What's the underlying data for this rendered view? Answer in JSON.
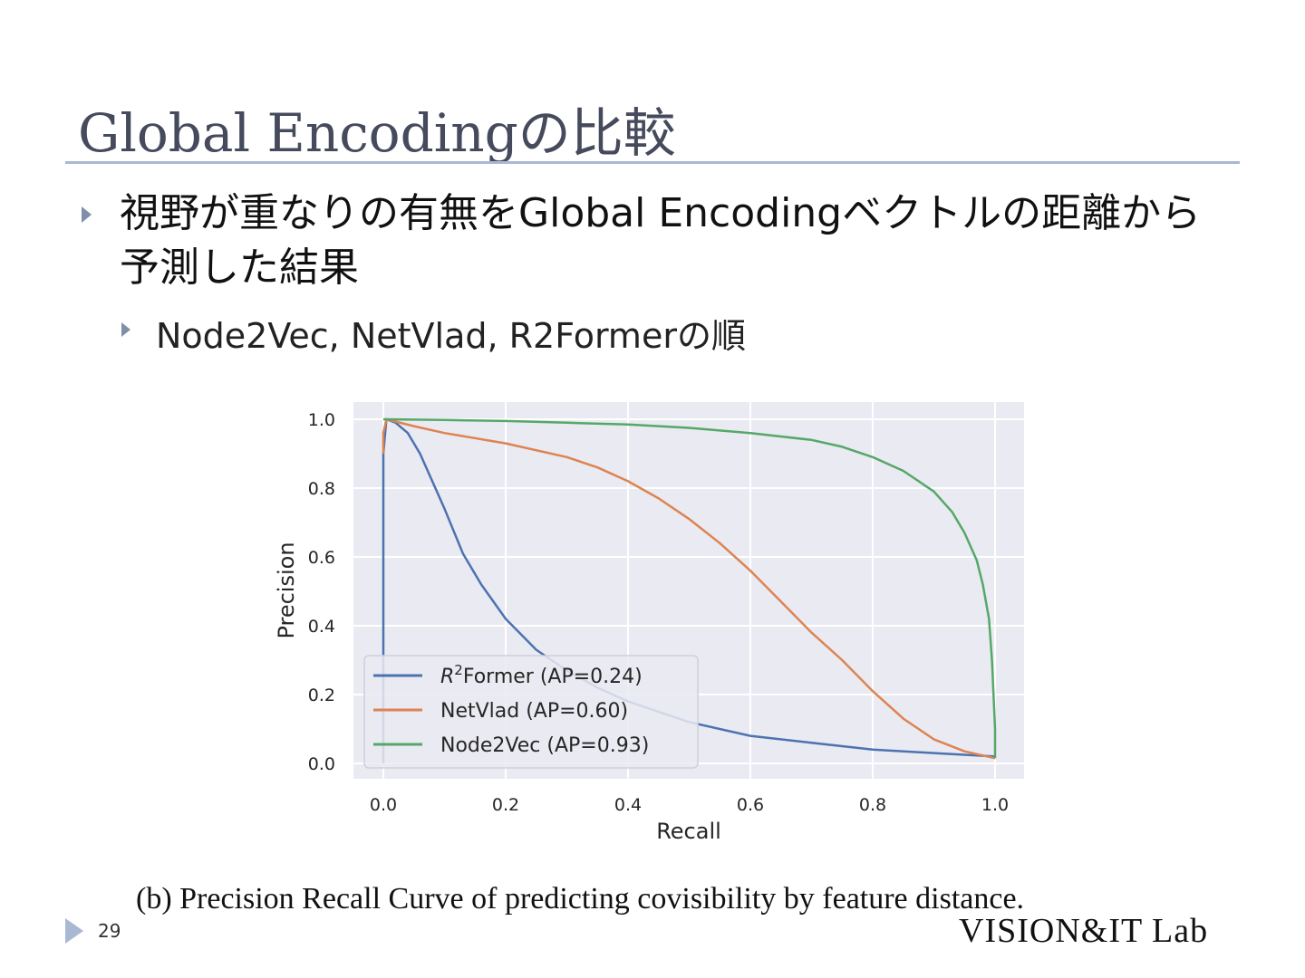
{
  "slide": {
    "title": "Global Encodingの比較",
    "bullet1": "視野が重なりの有無をGlobal Encodingベクトルの距離から予測した結果",
    "bullet2": "Node2Vec, NetVlad, R2Formerの順",
    "caption": "(b) Precision Recall Curve of predicting covisibility by feature distance.",
    "page_number": "29",
    "footer_logo": "VISION&IT Lab"
  },
  "chart_data": {
    "type": "line",
    "xlabel": "Recall",
    "ylabel": "Precision",
    "xlim": [
      0,
      1
    ],
    "ylim": [
      0,
      1
    ],
    "xticks": [
      "0.0",
      "0.2",
      "0.4",
      "0.6",
      "0.8",
      "1.0"
    ],
    "yticks": [
      "0.0",
      "0.2",
      "0.4",
      "0.6",
      "0.8",
      "1.0"
    ],
    "grid": true,
    "legend_position": "lower-left",
    "background": "#eaeaf2",
    "series": [
      {
        "name": "R²Former (AP=0.24)",
        "name_base": "R",
        "name_sup": "2",
        "name_rest": "Former (AP=0.24)",
        "color": "#4c72b0",
        "x": [
          0,
          0,
          0,
          0.005,
          0.02,
          0.04,
          0.06,
          0.08,
          0.1,
          0.13,
          0.16,
          0.2,
          0.25,
          0.3,
          0.35,
          0.4,
          0.5,
          0.6,
          0.7,
          0.8,
          0.9,
          1.0
        ],
        "y": [
          0,
          0.5,
          0.9,
          1.0,
          0.99,
          0.96,
          0.9,
          0.82,
          0.74,
          0.61,
          0.52,
          0.42,
          0.33,
          0.27,
          0.22,
          0.18,
          0.12,
          0.08,
          0.06,
          0.04,
          0.03,
          0.02
        ]
      },
      {
        "name": "NetVlad (AP=0.60)",
        "color": "#dd8452",
        "x": [
          0,
          0,
          0.005,
          0.05,
          0.1,
          0.2,
          0.3,
          0.35,
          0.4,
          0.45,
          0.5,
          0.55,
          0.6,
          0.65,
          0.7,
          0.75,
          0.8,
          0.85,
          0.9,
          0.95,
          1.0
        ],
        "y": [
          0.9,
          0.96,
          1.0,
          0.98,
          0.96,
          0.93,
          0.89,
          0.86,
          0.82,
          0.77,
          0.71,
          0.64,
          0.56,
          0.47,
          0.38,
          0.3,
          0.21,
          0.13,
          0.07,
          0.035,
          0.015
        ]
      },
      {
        "name": "Node2Vec (AP=0.93)",
        "color": "#55a868",
        "x": [
          0,
          0.1,
          0.2,
          0.3,
          0.4,
          0.5,
          0.6,
          0.7,
          0.75,
          0.8,
          0.85,
          0.9,
          0.93,
          0.95,
          0.97,
          0.98,
          0.99,
          0.995,
          1.0,
          1.0
        ],
        "y": [
          1.0,
          0.998,
          0.995,
          0.99,
          0.985,
          0.975,
          0.96,
          0.94,
          0.92,
          0.89,
          0.85,
          0.79,
          0.73,
          0.67,
          0.59,
          0.52,
          0.42,
          0.3,
          0.1,
          0.015
        ]
      }
    ]
  }
}
